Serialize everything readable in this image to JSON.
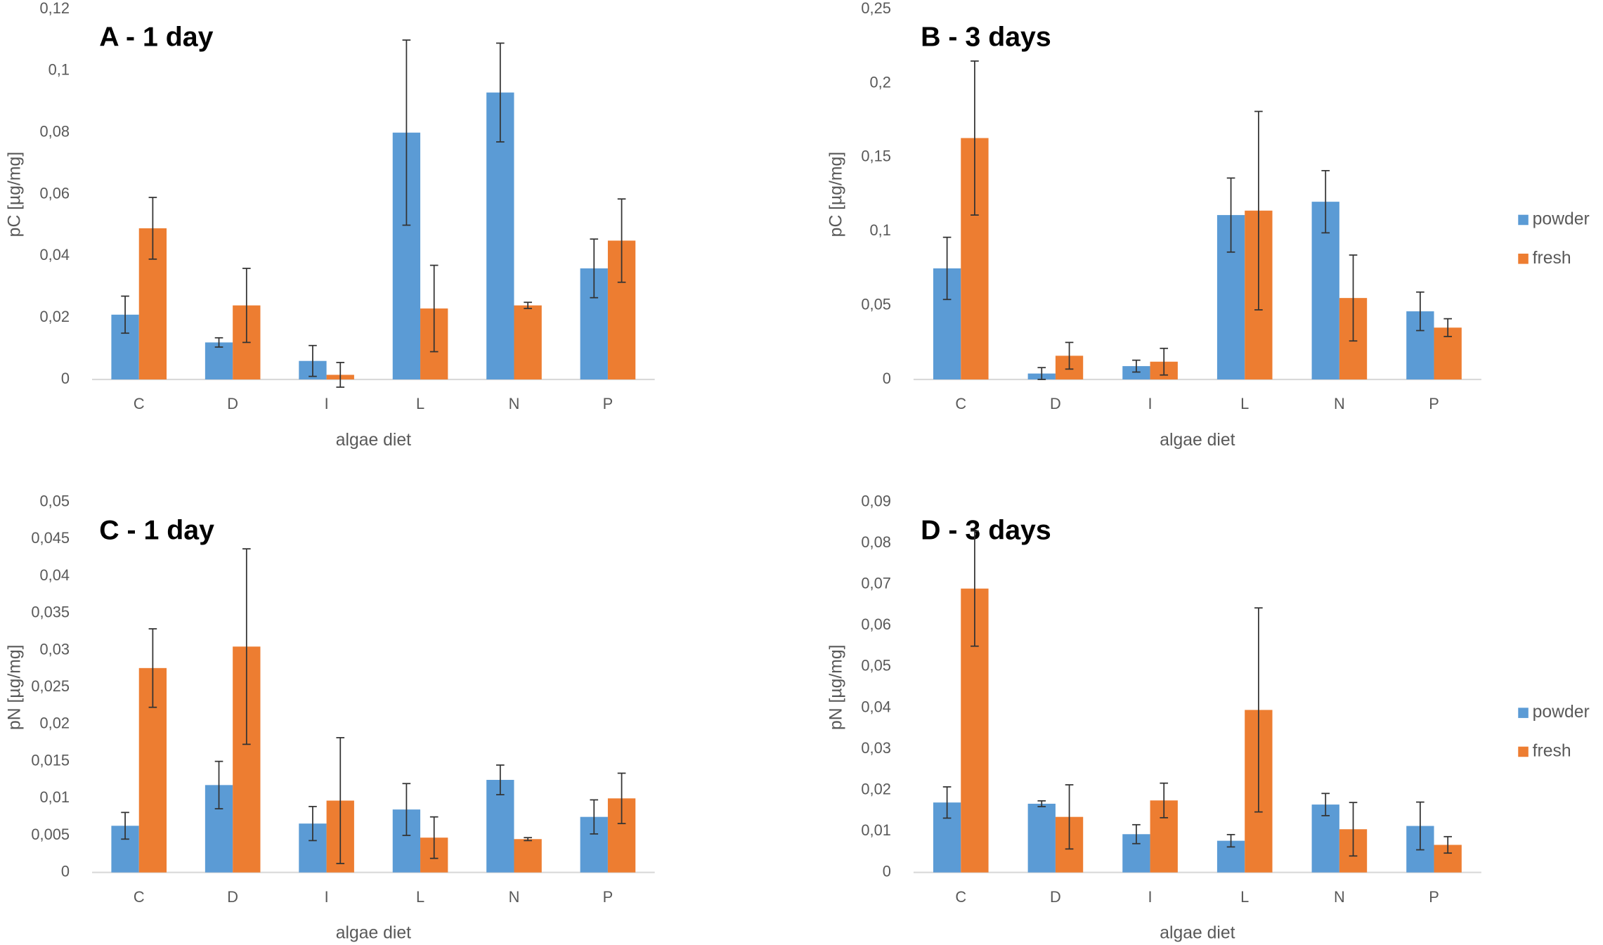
{
  "chart_data": [
    {
      "type": "bar",
      "title": "A - 1 day",
      "x_label": "algae diet",
      "y_label": "pC [µg/mg]",
      "categories": [
        "C",
        "D",
        "I",
        "L",
        "N",
        "P"
      ],
      "series": [
        {
          "name": "powder",
          "color": "#5b9bd5",
          "values": [
            0.021,
            0.012,
            0.006,
            0.08,
            0.093,
            0.036
          ],
          "errors": [
            0.006,
            0.0015,
            0.005,
            0.03,
            0.016,
            0.0095
          ]
        },
        {
          "name": "fresh",
          "color": "#ed7d31",
          "values": [
            0.049,
            0.024,
            0.0015,
            0.023,
            0.024,
            0.045
          ],
          "errors": [
            0.01,
            0.012,
            0.004,
            0.014,
            0.001,
            0.0135
          ]
        }
      ],
      "ylim": [
        0,
        0.12
      ],
      "yticks": [
        0,
        {
          "value": 0.02,
          "label": "0,02"
        },
        {
          "value": 0.04,
          "label": "0,04"
        },
        {
          "value": 0.06,
          "label": "0,06"
        },
        {
          "value": 0.08,
          "label": "0,08"
        },
        {
          "value": 0.1,
          "label": "0,1"
        },
        {
          "value": 0.12,
          "label": "0,12"
        }
      ],
      "legend": false
    },
    {
      "type": "bar",
      "title": "B - 3 days",
      "x_label": "algae diet",
      "y_label": "pC [µg/mg]",
      "categories": [
        "C",
        "D",
        "I",
        "L",
        "N",
        "P"
      ],
      "series": [
        {
          "name": "powder",
          "color": "#5b9bd5",
          "values": [
            0.075,
            0.004,
            0.009,
            0.111,
            0.12,
            0.046
          ],
          "errors": [
            0.021,
            0.004,
            0.004,
            0.025,
            0.021,
            0.013
          ]
        },
        {
          "name": "fresh",
          "color": "#ed7d31",
          "values": [
            0.163,
            0.016,
            0.012,
            0.114,
            0.055,
            0.035
          ],
          "errors": [
            0.052,
            0.009,
            0.009,
            0.067,
            0.029,
            0.006
          ]
        }
      ],
      "ylim": [
        0,
        0.25
      ],
      "yticks": [
        0,
        {
          "value": 0.05,
          "label": "0,05"
        },
        {
          "value": 0.1,
          "label": "0,1"
        },
        {
          "value": 0.15,
          "label": "0,15"
        },
        {
          "value": 0.2,
          "label": "0,2"
        },
        {
          "value": 0.25,
          "label": "0,25"
        }
      ],
      "legend": "right"
    },
    {
      "type": "bar",
      "title": "C - 1 day",
      "x_label": "algae diet",
      "y_label": "pN [µg/mg]",
      "categories": [
        "C",
        "D",
        "I",
        "L",
        "N",
        "P"
      ],
      "series": [
        {
          "name": "powder",
          "color": "#5b9bd5",
          "values": [
            0.0063,
            0.0118,
            0.0066,
            0.0085,
            0.0125,
            0.0075
          ],
          "errors": [
            0.0018,
            0.0032,
            0.0023,
            0.0035,
            0.002,
            0.0023
          ]
        },
        {
          "name": "fresh",
          "color": "#ed7d31",
          "values": [
            0.0276,
            0.0305,
            0.0097,
            0.0047,
            0.0045,
            0.01
          ],
          "errors": [
            0.0053,
            0.0132,
            0.0085,
            0.0028,
            0.0002,
            0.0034
          ]
        }
      ],
      "ylim": [
        0,
        0.05
      ],
      "yticks": [
        0,
        {
          "value": 0.005,
          "label": "0,005"
        },
        {
          "value": 0.01,
          "label": "0,01"
        },
        {
          "value": 0.015,
          "label": "0,015"
        },
        {
          "value": 0.02,
          "label": "0,02"
        },
        {
          "value": 0.025,
          "label": "0,025"
        },
        {
          "value": 0.03,
          "label": "0,03"
        },
        {
          "value": 0.035,
          "label": "0,035"
        },
        {
          "value": 0.04,
          "label": "0,04"
        },
        {
          "value": 0.045,
          "label": "0,045"
        },
        {
          "value": 0.05,
          "label": "0,05"
        }
      ],
      "legend": false
    },
    {
      "type": "bar",
      "title": "D - 3 days",
      "x_label": "algae diet",
      "y_label": "pN [µg/mg]",
      "categories": [
        "C",
        "D",
        "I",
        "L",
        "N",
        "P"
      ],
      "series": [
        {
          "name": "powder",
          "color": "#5b9bd5",
          "values": [
            0.017,
            0.0167,
            0.0093,
            0.0077,
            0.0165,
            0.0113
          ],
          "errors": [
            0.0038,
            0.0007,
            0.0023,
            0.0015,
            0.0027,
            0.0058
          ]
        },
        {
          "name": "fresh",
          "color": "#ed7d31",
          "values": [
            0.069,
            0.0135,
            0.0175,
            0.0395,
            0.0105,
            0.0067
          ],
          "errors": [
            0.014,
            0.0078,
            0.0042,
            0.0248,
            0.0065,
            0.002
          ]
        }
      ],
      "ylim": [
        0,
        0.09
      ],
      "yticks": [
        0,
        {
          "value": 0.01,
          "label": "0,01"
        },
        {
          "value": 0.02,
          "label": "0,02"
        },
        {
          "value": 0.03,
          "label": "0,03"
        },
        {
          "value": 0.04,
          "label": "0,04"
        },
        {
          "value": 0.05,
          "label": "0,05"
        },
        {
          "value": 0.06,
          "label": "0,06"
        },
        {
          "value": 0.07,
          "label": "0,07"
        },
        {
          "value": 0.08,
          "label": "0,08"
        },
        {
          "value": 0.09,
          "label": "0,09"
        }
      ],
      "legend": "right"
    }
  ]
}
